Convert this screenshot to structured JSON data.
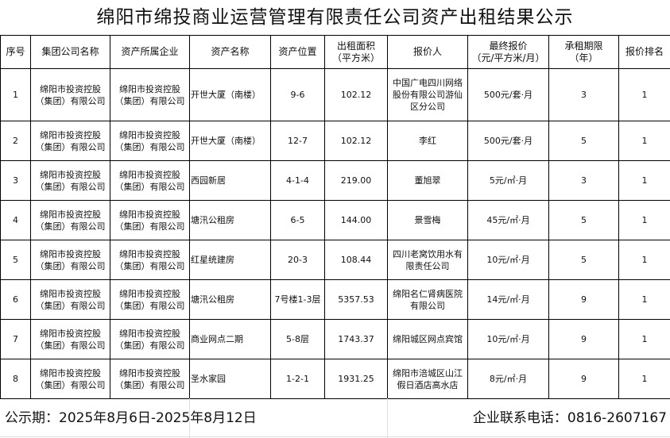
{
  "title": "绵阳市绵投商业运营管理有限责任公司资产出租结果公示",
  "headers": [
    "序号",
    "集团公司名称",
    "资产所属企业",
    "资产名称",
    "资产位置",
    "出租面积\n（平方米）",
    "报价人",
    "最终报价\n（元/平方米/月）",
    "承租期限\n（年）",
    "报价排名"
  ],
  "rows": [
    [
      "1",
      "绵阳市投资控股（集团）有限公司",
      "绵阳市投资控股（集团）有限公司",
      "开世大厦（南楼）",
      "9-6",
      "102.12",
      "中国广电四川网络股份有限公司游仙区分公司",
      "500元/套·月",
      "3",
      "1"
    ],
    [
      "2",
      "绵阳市投资控股（集团）有限公司",
      "绵阳市投资控股（集团）有限公司",
      "开世大厦（南楼）",
      "12-7",
      "102.12",
      "李红",
      "500元/套·月",
      "5",
      "1"
    ],
    [
      "3",
      "绵阳市投资控股（集团）有限公司",
      "绵阳市投资控股（集团）有限公司",
      "西园新居",
      "4-1-4",
      "219.00",
      "董旭翠",
      "5元/㎡·月",
      "3",
      "1"
    ],
    [
      "4",
      "绵阳市投资控股（集团）有限公司",
      "绵阳市投资控股（集团）有限公司",
      "塘汛公租房",
      "6-5",
      "144.00",
      "景雪梅",
      "45元/㎡·月",
      "5",
      "1"
    ],
    [
      "5",
      "绵阳市投资控股（集团）有限公司",
      "绵阳市投资控股（集团）有限公司",
      "红星统建房",
      "20-3",
      "108.44",
      "四川老窝饮用水有限责任公司",
      "10元/㎡·月",
      "5",
      "1"
    ],
    [
      "6",
      "绵阳市投资控股（集团）有限公司",
      "绵阳市投资控股（集团）有限公司",
      "塘汛公租房",
      "7号楼1-3层",
      "5357.53",
      "绵阳名仁肾病医院有限公司",
      "14元/㎡·月",
      "9",
      "1"
    ],
    [
      "7",
      "绵阳市投资控股（集团）有限公司",
      "绵阳市投资控股（集团）有限公司",
      "商业网点二期",
      "5-8层",
      "1743.37",
      "绵阳城区网点宾馆",
      "10元/㎡·月",
      "9",
      "1"
    ],
    [
      "8",
      "绵阳市投资控股（集团）有限公司",
      "绵阳市投资控股（集团）有限公司",
      "圣水家园",
      "1-2-1",
      "1931.25",
      "绵阳市涪城区山江假日酒店高水店",
      "8元/㎡·月",
      "9",
      "1"
    ]
  ],
  "footer": {
    "period": "公示期：2025年8月6日-2025年8月12日",
    "contact": "企业联系电话：0816-2607167"
  }
}
